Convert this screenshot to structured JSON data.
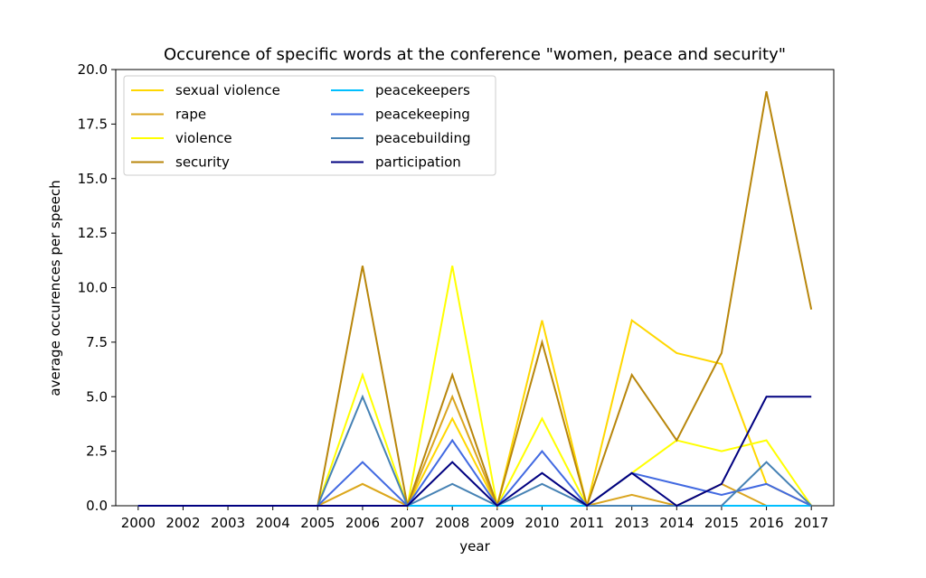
{
  "chart_data": {
    "type": "line",
    "title": "Occurence of specific words at the conference \"women, peace and security\"",
    "xlabel": "year",
    "ylabel": "average occurences per speech",
    "categories": [
      "2000",
      "2002",
      "2003",
      "2004",
      "2005",
      "2006",
      "2007",
      "2008",
      "2009",
      "2010",
      "2011",
      "2013",
      "2014",
      "2015",
      "2016",
      "2017"
    ],
    "ylim": [
      0,
      20
    ],
    "yticks": [
      "0.0",
      "2.5",
      "5.0",
      "7.5",
      "10.0",
      "12.5",
      "15.0",
      "17.5",
      "20.0"
    ],
    "grid": false,
    "legend_position": "top-left",
    "series": [
      {
        "name": "sexual violence",
        "color": "#FFD700",
        "values": [
          0,
          0,
          0,
          0,
          0,
          1,
          0,
          4,
          0,
          8.5,
          0,
          8.5,
          7,
          6.5,
          1,
          0
        ]
      },
      {
        "name": "rape",
        "color": "#DAA520",
        "values": [
          0,
          0,
          0,
          0,
          0,
          1,
          0,
          5,
          0,
          0,
          0,
          0.5,
          0,
          1,
          0,
          null
        ]
      },
      {
        "name": "violence",
        "color": "#FFFF00",
        "values": [
          0,
          0,
          0,
          0,
          0,
          6,
          0,
          11,
          0,
          4,
          0,
          1.5,
          3,
          2.5,
          3,
          0
        ]
      },
      {
        "name": "security",
        "color": "#B8860B",
        "values": [
          0,
          0,
          0,
          0,
          0,
          11,
          0,
          6,
          0,
          7.5,
          0,
          6,
          3,
          7,
          19,
          9
        ]
      },
      {
        "name": "peacekeepers",
        "color": "#00BFFF",
        "values": [
          0,
          0,
          0,
          0,
          0,
          0,
          0,
          0,
          0,
          0,
          0,
          0,
          0,
          0,
          0,
          0
        ]
      },
      {
        "name": "peacekeeping",
        "color": "#4169E1",
        "values": [
          0,
          0,
          0,
          0,
          0,
          2,
          0,
          3,
          0,
          2.5,
          0,
          1.5,
          1,
          0.5,
          1,
          0
        ]
      },
      {
        "name": "peacebuilding",
        "color": "#4682B4",
        "values": [
          0,
          0,
          0,
          0,
          0,
          5,
          0,
          1,
          0,
          1,
          0,
          0,
          0,
          0,
          2,
          0
        ]
      },
      {
        "name": "participation",
        "color": "#000080",
        "values": [
          0,
          0,
          0,
          0,
          0,
          0,
          0,
          2,
          0,
          1.5,
          0,
          1.5,
          0,
          1,
          5,
          5
        ]
      }
    ]
  }
}
